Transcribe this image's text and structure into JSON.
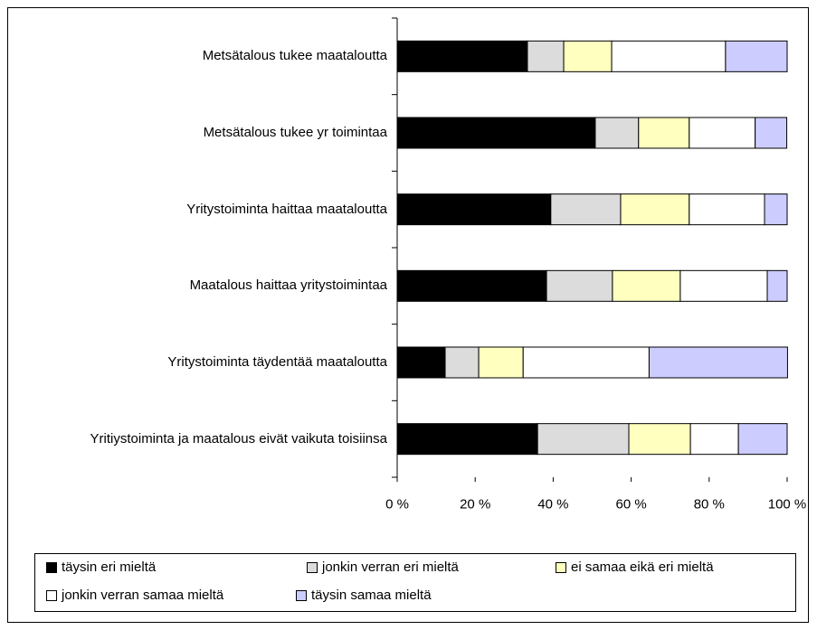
{
  "chart_data": {
    "type": "stacked_bar_horizontal",
    "categories": [
      "Metsätalous tukee maataloutta",
      "Metsätalous tukee yr toimintaa",
      "Yritystoiminta haittaa maataloutta",
      "Maatalous haittaa yritystoimintaa",
      "Yritystoiminta täydentää maataloutta",
      "Yritiystoiminta ja maatalous eivät vaikuta toisiinsa"
    ],
    "series": [
      {
        "name": "täysin eri mieltä",
        "color": "#000000",
        "values": [
          33.4,
          50.8,
          39.4,
          38.3,
          12.3,
          36.0
        ]
      },
      {
        "name": "jonkin verran eri mieltä",
        "color": "#dcdcdc",
        "values": [
          9.3,
          11.1,
          17.9,
          16.9,
          8.6,
          23.4
        ]
      },
      {
        "name": "ei samaa eikä eri mieltä",
        "color": "#ffffc0",
        "values": [
          12.3,
          13.0,
          17.6,
          17.4,
          11.4,
          15.8
        ]
      },
      {
        "name": "jonkin verran samaa mieltä",
        "color": "#ffffff",
        "values": [
          29.2,
          16.9,
          19.3,
          22.3,
          32.3,
          12.3
        ]
      },
      {
        "name": "täysin samaa mieltä",
        "color": "#ccccff",
        "values": [
          15.8,
          8.1,
          5.8,
          5.1,
          35.5,
          12.5
        ]
      }
    ],
    "xlim": [
      0,
      100
    ],
    "xticks": [
      {
        "value": 0,
        "label": "0 %"
      },
      {
        "value": 20,
        "label": "20 %"
      },
      {
        "value": 40,
        "label": "40 %"
      },
      {
        "value": 60,
        "label": "60 %"
      },
      {
        "value": 80,
        "label": "80 %"
      },
      {
        "value": 100,
        "label": "100 %"
      }
    ],
    "legend": "bottom"
  }
}
